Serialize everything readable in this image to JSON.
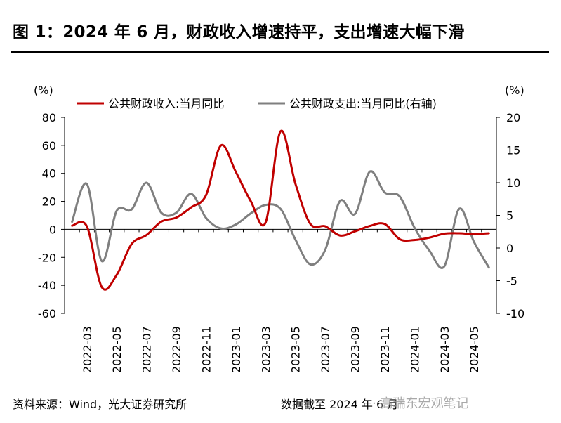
{
  "header": {
    "title": "图 1：2024 年 6 月，财政收入增速持平，支出增速大幅下滑"
  },
  "footer": {
    "source": "资料来源：Wind，光大证券研究所",
    "date_note": "数据截至 2024 年 6 月",
    "watermark": "· 高瑞东宏观笔记"
  },
  "chart_data": {
    "type": "line",
    "title": "",
    "left_axis_unit": "(%)",
    "right_axis_unit": "(%)",
    "ylim_left": [
      -60,
      80
    ],
    "ylim_right": [
      -10,
      20
    ],
    "y_ticks_left": [
      80,
      60,
      40,
      20,
      0,
      -20,
      -40,
      -60
    ],
    "y_ticks_right": [
      20,
      15,
      10,
      5,
      0,
      -5,
      -10
    ],
    "x_tick_labels": [
      "2022-03",
      "2022-05",
      "2022-07",
      "2022-09",
      "2022-11",
      "2023-01",
      "2023-03",
      "2023-05",
      "2023-07",
      "2023-09",
      "2023-11",
      "2024-01",
      "2024-03",
      "2024-05"
    ],
    "legend": {
      "placement": "top",
      "revenue_label": "公共财政收入:当月同比",
      "expenditure_label": "公共财政支出:当月同比(右轴)"
    },
    "x": [
      "2022-02",
      "2022-03",
      "2022-04",
      "2022-05",
      "2022-06",
      "2022-07",
      "2022-08",
      "2022-09",
      "2022-10",
      "2022-11",
      "2022-12",
      "2023-01",
      "2023-02",
      "2023-03",
      "2023-04",
      "2023-05",
      "2023-06",
      "2023-07",
      "2023-08",
      "2023-09",
      "2023-10",
      "2023-11",
      "2023-12",
      "2024-01",
      "2024-02",
      "2024-03",
      "2024-04",
      "2024-05",
      "2024-06"
    ],
    "series": [
      {
        "name": "公共财政收入:当月同比",
        "axis": "left",
        "color": "#c00000",
        "values": [
          2.6,
          2.0,
          -41.3,
          -32.5,
          -10.5,
          -4.1,
          5.6,
          8.4,
          15.7,
          24.5,
          60.0,
          41.0,
          20.2,
          5.0,
          70.0,
          32.7,
          4.0,
          2.2,
          -4.4,
          -1.4,
          2.4,
          3.9,
          -7.0,
          -7.6,
          -5.9,
          -3.1,
          -2.8,
          -3.4,
          -2.8
        ]
      },
      {
        "name": "公共财政支出:当月同比(右轴)",
        "axis": "right",
        "color": "#7f7f7f",
        "values": [
          4.0,
          9.8,
          -2.0,
          5.7,
          5.9,
          10.0,
          5.4,
          5.4,
          8.3,
          4.6,
          3.0,
          3.6,
          5.3,
          6.6,
          6.0,
          1.3,
          -2.5,
          -0.3,
          7.2,
          5.2,
          11.7,
          8.5,
          7.9,
          3.1,
          -0.4,
          -2.8,
          6.0,
          0.9,
          -3.0
        ]
      }
    ]
  }
}
